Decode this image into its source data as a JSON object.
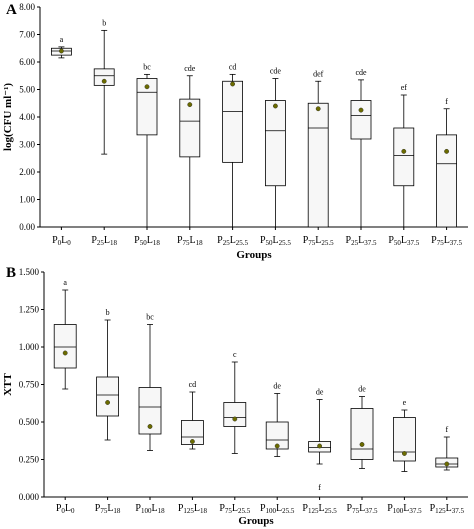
{
  "chart_data": [
    {
      "type": "box",
      "panel_label": "A",
      "xlabel": "Groups",
      "ylabel": "log(CFU ml⁻¹)",
      "ylim": [
        0,
        8
      ],
      "yticks": [
        "0.00",
        "1.00",
        "2.00",
        "3.00",
        "4.00",
        "5.00",
        "6.00",
        "7.00",
        "8.00"
      ],
      "ytick_values": [
        0,
        1,
        2,
        3,
        4,
        5,
        6,
        7,
        8
      ],
      "grid": false,
      "groups": [
        {
          "p": "0",
          "l": "0",
          "min": 6.15,
          "q1": 6.25,
          "median": 6.4,
          "q3": 6.5,
          "max": 6.55,
          "mean": 6.4,
          "letter": "a"
        },
        {
          "p": "25",
          "l": "18",
          "min": 2.65,
          "q1": 5.15,
          "median": 5.5,
          "q3": 5.75,
          "max": 7.15,
          "mean": 5.3,
          "letter": "b"
        },
        {
          "p": "50",
          "l": "18",
          "min": 0.0,
          "q1": 3.35,
          "median": 4.9,
          "q3": 5.4,
          "max": 5.55,
          "mean": 5.1,
          "letter": "bc"
        },
        {
          "p": "75",
          "l": "18",
          "min": 0.0,
          "q1": 2.55,
          "median": 3.85,
          "q3": 4.65,
          "max": 5.5,
          "mean": 4.45,
          "letter": "cde"
        },
        {
          "p": "25",
          "l": "25.5",
          "min": 0.0,
          "q1": 2.35,
          "median": 4.2,
          "q3": 5.3,
          "max": 5.55,
          "mean": 5.2,
          "letter": "cd"
        },
        {
          "p": "50",
          "l": "25.5",
          "min": 0.0,
          "q1": 1.5,
          "median": 3.5,
          "q3": 4.6,
          "max": 5.4,
          "mean": 4.4,
          "letter": "cde"
        },
        {
          "p": "75",
          "l": "25.5",
          "min": 0.0,
          "q1": 0.0,
          "median": 3.6,
          "q3": 4.5,
          "max": 5.3,
          "mean": 4.3,
          "letter": "def"
        },
        {
          "p": "25",
          "l": "37.5",
          "min": 0.0,
          "q1": 3.2,
          "median": 4.05,
          "q3": 4.6,
          "max": 5.35,
          "mean": 4.25,
          "letter": "cde"
        },
        {
          "p": "50",
          "l": "37.5",
          "min": 0.0,
          "q1": 1.5,
          "median": 2.6,
          "q3": 3.6,
          "max": 4.8,
          "mean": 2.75,
          "letter": "ef"
        },
        {
          "p": "75",
          "l": "37.5",
          "min": 0.0,
          "q1": 0.0,
          "median": 2.3,
          "q3": 3.35,
          "max": 4.3,
          "mean": 2.75,
          "letter": "f"
        }
      ]
    },
    {
      "type": "box",
      "panel_label": "B",
      "xlabel": "Groups",
      "ylabel": "XTT",
      "ylim": [
        0,
        1.5
      ],
      "yticks": [
        "0.000",
        "0.250",
        "0.500",
        "0.750",
        "1.000",
        "1.250",
        "1.500"
      ],
      "ytick_values": [
        0,
        0.25,
        0.5,
        0.75,
        1.0,
        1.25,
        1.5
      ],
      "grid": false,
      "groups": [
        {
          "p": "0",
          "l": "0",
          "min": 0.72,
          "q1": 0.86,
          "median": 1.0,
          "q3": 1.15,
          "max": 1.38,
          "mean": 0.96,
          "letter": "a"
        },
        {
          "p": "75",
          "l": "18",
          "min": 0.38,
          "q1": 0.54,
          "median": 0.68,
          "q3": 0.8,
          "max": 1.18,
          "mean": 0.63,
          "letter": "b"
        },
        {
          "p": "100",
          "l": "18",
          "min": 0.31,
          "q1": 0.42,
          "median": 0.6,
          "q3": 0.73,
          "max": 1.15,
          "mean": 0.47,
          "letter": "bc"
        },
        {
          "p": "125",
          "l": "18",
          "min": 0.32,
          "q1": 0.35,
          "median": 0.4,
          "q3": 0.51,
          "max": 0.7,
          "mean": 0.37,
          "letter": "cd"
        },
        {
          "p": "75",
          "l": "25.5",
          "min": 0.29,
          "q1": 0.47,
          "median": 0.53,
          "q3": 0.63,
          "max": 0.9,
          "mean": 0.52,
          "letter": "c"
        },
        {
          "p": "100",
          "l": "25.5",
          "min": 0.27,
          "q1": 0.32,
          "median": 0.38,
          "q3": 0.5,
          "max": 0.69,
          "mean": 0.34,
          "letter": "de"
        },
        {
          "p": "125",
          "l": "25.5",
          "min": 0.22,
          "q1": 0.3,
          "median": 0.33,
          "q3": 0.37,
          "max": 0.65,
          "mean": 0.34,
          "letter": "de",
          "low_letter": "f"
        },
        {
          "p": "75",
          "l": "37.5",
          "min": 0.19,
          "q1": 0.25,
          "median": 0.32,
          "q3": 0.59,
          "max": 0.67,
          "mean": 0.35,
          "letter": "de"
        },
        {
          "p": "100",
          "l": "37.5",
          "min": 0.17,
          "q1": 0.24,
          "median": 0.3,
          "q3": 0.53,
          "max": 0.58,
          "mean": 0.29,
          "letter": "e"
        },
        {
          "p": "125",
          "l": "37.5",
          "min": 0.18,
          "q1": 0.2,
          "median": 0.22,
          "q3": 0.26,
          "max": 0.4,
          "mean": 0.22,
          "letter": "f"
        }
      ]
    }
  ]
}
